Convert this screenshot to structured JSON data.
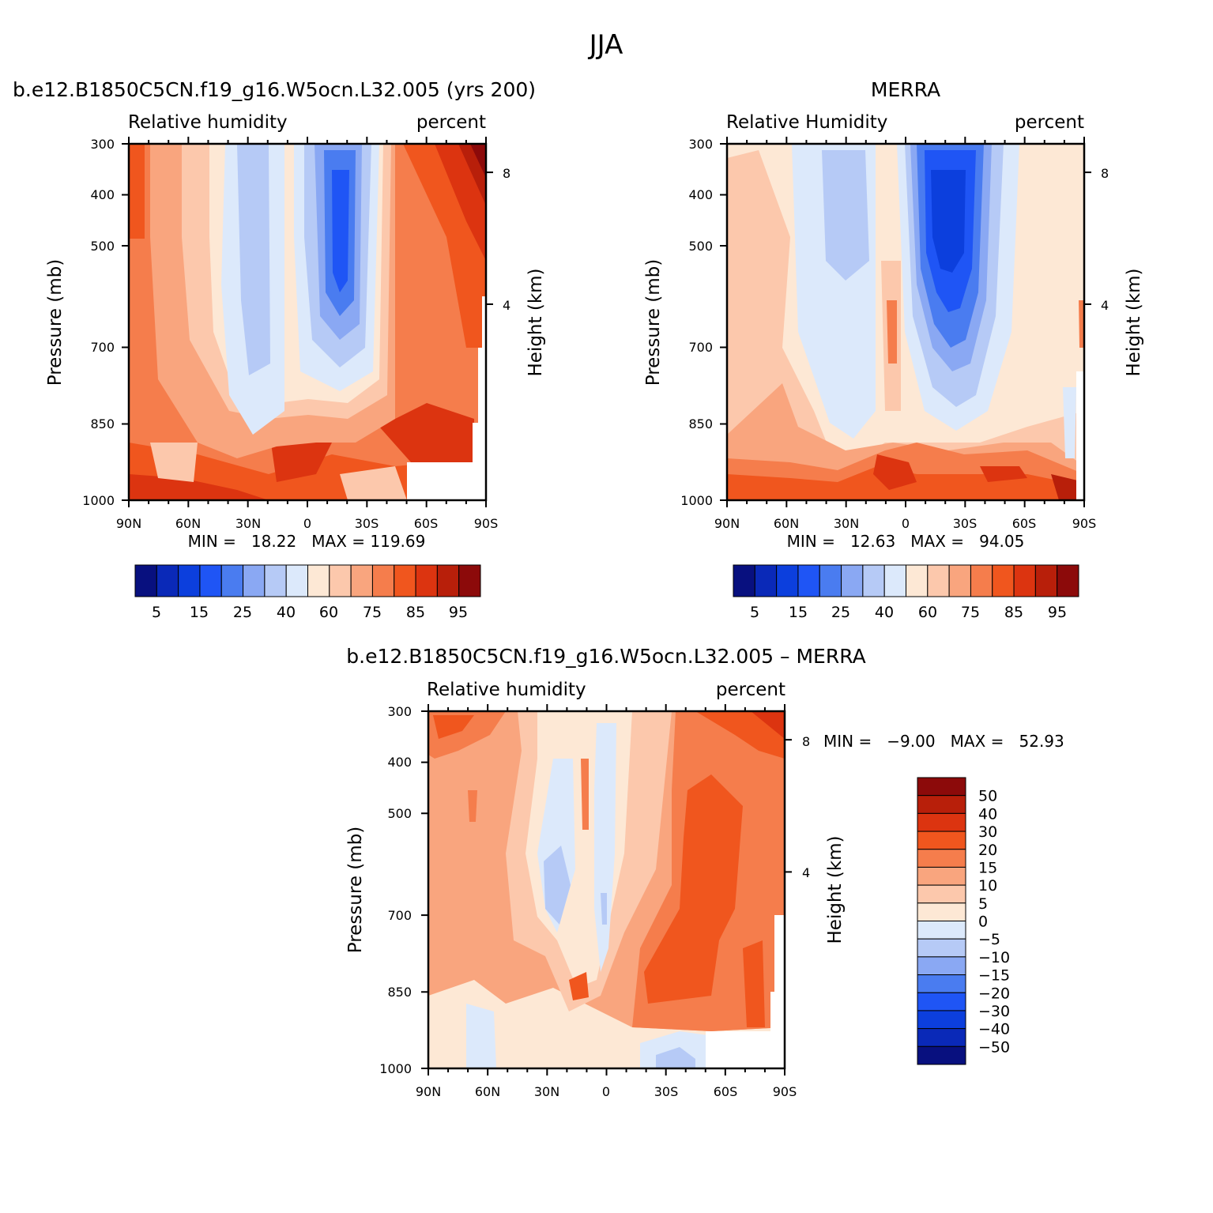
{
  "figure": {
    "title": "JJA"
  },
  "colors": {
    "abs_palette": [
      "#08107f",
      "#0a29b8",
      "#0c3fdd",
      "#1f55f5",
      "#4a7cf0",
      "#8aa8f3",
      "#b6caf6",
      "#dce9fb",
      "#fde8d5",
      "#fcc8ac",
      "#f9a57e",
      "#f57d4c",
      "#f0561e",
      "#dc3410",
      "#b81f0a",
      "#8c0a0a"
    ],
    "diff_palette": [
      "#08107f",
      "#0a29b8",
      "#0c3fdd",
      "#1f55f5",
      "#4a7cf0",
      "#8aa8f3",
      "#b6caf6",
      "#dce9fb",
      "#fde8d5",
      "#fcc8ac",
      "#f9a57e",
      "#f57d4c",
      "#f0561e",
      "#dc3410",
      "#b81f0a",
      "#8c0a0a"
    ]
  },
  "chart_data": [
    {
      "id": "model",
      "type": "heatmap",
      "title": "b.e12.B1850C5CN.f19_g16.W5ocn.L32.005 (yrs 200)",
      "left_label": "Relative humidity",
      "right_label": "percent",
      "ylabel": "Pressure (mb)",
      "ylabel_right": "Height (km)",
      "x_ticks": [
        "90N",
        "60N",
        "30N",
        "0",
        "30S",
        "60S",
        "90S"
      ],
      "y_ticks": [
        "300",
        "400",
        "500",
        "700",
        "850",
        "1000"
      ],
      "height_ticks": [
        "8",
        "4"
      ],
      "stats_text": "MIN =   18.22   MAX = 119.69",
      "min": 18.22,
      "max": 119.69,
      "colorbar_labels": [
        "5",
        "15",
        "25",
        "40",
        "60",
        "75",
        "85",
        "95"
      ]
    },
    {
      "id": "obs",
      "type": "heatmap",
      "title": "MERRA",
      "left_label": "Relative Humidity",
      "right_label": "percent",
      "ylabel": "Pressure (mb)",
      "ylabel_right": "Height (km)",
      "x_ticks": [
        "90N",
        "60N",
        "30N",
        "0",
        "30S",
        "60S",
        "90S"
      ],
      "y_ticks": [
        "300",
        "400",
        "500",
        "700",
        "850",
        "1000"
      ],
      "height_ticks": [
        "8",
        "4"
      ],
      "stats_text": "MIN =   12.63   MAX =   94.05",
      "min": 12.63,
      "max": 94.05,
      "colorbar_labels": [
        "5",
        "15",
        "25",
        "40",
        "60",
        "75",
        "85",
        "95"
      ]
    },
    {
      "id": "diff",
      "type": "heatmap",
      "title": "b.e12.B1850C5CN.f19_g16.W5ocn.L32.005 – MERRA",
      "left_label": "Relative humidity",
      "right_label": "percent",
      "ylabel": "Pressure (mb)",
      "ylabel_right": "Height (km)",
      "x_ticks": [
        "90N",
        "60N",
        "30N",
        "0",
        "30S",
        "60S",
        "90S"
      ],
      "y_ticks": [
        "300",
        "400",
        "500",
        "700",
        "850",
        "1000"
      ],
      "height_ticks": [
        "8",
        "4"
      ],
      "stats_text": "MIN =   −9.00   MAX =   52.93",
      "min": -9.0,
      "max": 52.93,
      "colorbar_labels": [
        "50",
        "40",
        "30",
        "20",
        "15",
        "10",
        "5",
        "0",
        "−5",
        "−10",
        "−15",
        "−20",
        "−30",
        "−40",
        "−50"
      ]
    }
  ]
}
